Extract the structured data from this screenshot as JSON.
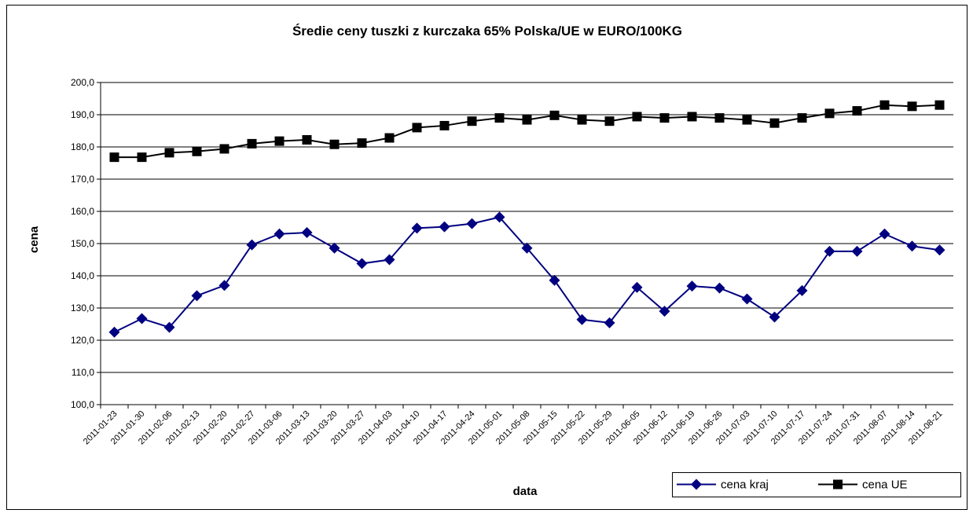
{
  "chart_data": {
    "type": "line",
    "title": "Średie ceny tuszki z kurczaka 65% Polska/UE w EURO/100KG",
    "x_label": "data",
    "y_label": "cena",
    "categories": [
      "2011-01-23",
      "2011-01-30",
      "2011-02-06",
      "2011-02-13",
      "2011-02-20",
      "2011-02-27",
      "2011-03-06",
      "2011-03-13",
      "2011-03-20",
      "2011-03-27",
      "2011-04-03",
      "2011-04-10",
      "2011-04-17",
      "2011-04-24",
      "2011-05-01",
      "2011-05-08",
      "2011-05-15",
      "2011-05-22",
      "2011-05-29",
      "2011-06-05",
      "2011-06-12",
      "2011-06-19",
      "2011-06-26",
      "2011-07-03",
      "2011-07-10",
      "2011-07-17",
      "2011-07-24",
      "2011-07-31",
      "2011-08-07",
      "2011-08-14",
      "2011-08-21"
    ],
    "series": [
      {
        "name": "cena kraj",
        "color": "#000080",
        "marker": "diamond",
        "values": [
          122.5,
          126.7,
          124,
          133.8,
          137,
          149.6,
          153,
          153.4,
          148.6,
          143.8,
          145,
          154.8,
          155.2,
          156.2,
          158.2,
          148.6,
          138.6,
          126.4,
          125.4,
          136.4,
          129,
          136.8,
          136.2,
          132.8,
          127.2,
          135.4,
          147.6,
          147.6,
          153,
          149.2,
          148
        ]
      },
      {
        "name": "cena UE",
        "color": "#000000",
        "marker": "square",
        "values": [
          176.8,
          176.8,
          178.2,
          178.6,
          179.4,
          181,
          181.8,
          182.2,
          180.8,
          181.2,
          182.8,
          186,
          186.6,
          188,
          189,
          188.4,
          189.8,
          188.4,
          188,
          189.4,
          189,
          189.4,
          189,
          188.4,
          187.4,
          189,
          190.4,
          191.2,
          193,
          192.6,
          193
        ]
      }
    ],
    "ylim": [
      100,
      200
    ],
    "yticks": [
      {
        "value": 100,
        "label": "100,0"
      },
      {
        "value": 110,
        "label": "110,0"
      },
      {
        "value": 120,
        "label": "120,0"
      },
      {
        "value": 130,
        "label": "130,0"
      },
      {
        "value": 140,
        "label": "140,0"
      },
      {
        "value": 150,
        "label": "150,0"
      },
      {
        "value": 160,
        "label": "160,0"
      },
      {
        "value": 170,
        "label": "170,0"
      },
      {
        "value": 180,
        "label": "180,0"
      },
      {
        "value": 190,
        "label": "190,0"
      },
      {
        "value": 200,
        "label": "200,0"
      }
    ],
    "grid": true,
    "legend": "bottom-right"
  }
}
